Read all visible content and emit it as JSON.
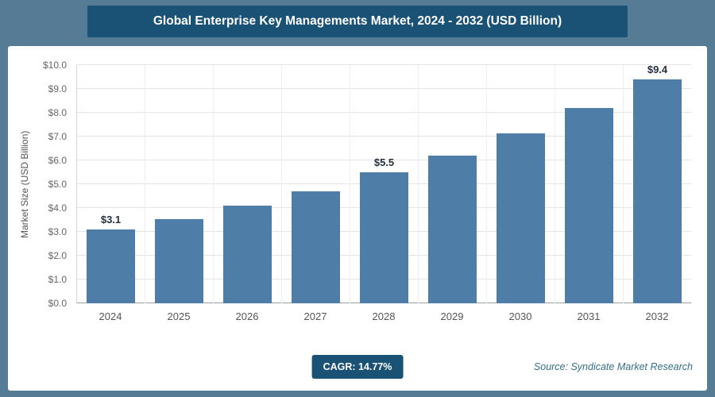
{
  "chart_data": {
    "type": "bar",
    "title": "Global Enterprise Key Managements Market, 2024 - 2032 (USD Billion)",
    "categories": [
      "2024",
      "2025",
      "2026",
      "2027",
      "2028",
      "2029",
      "2030",
      "2031",
      "2032"
    ],
    "values": [
      3.1,
      3.55,
      4.1,
      4.7,
      5.5,
      6.2,
      7.15,
      8.2,
      9.4
    ],
    "data_labels": [
      "$3.1",
      "",
      "",
      "",
      "$5.5",
      "",
      "",
      "",
      "$9.4"
    ],
    "xlabel": "",
    "ylabel": "Market Size (USD Billion)",
    "ylim": [
      0,
      10
    ],
    "ytick_labels": [
      "$0.0",
      "$1.0",
      "$2.0",
      "$3.0",
      "$4.0",
      "$5.0",
      "$6.0",
      "$7.0",
      "$8.0",
      "$9.0",
      "$10.0"
    ],
    "grid": true,
    "legend": "none",
    "bar_color": "#4e7ea7"
  },
  "footer": {
    "cagr_label": "CAGR: 14.77%",
    "source": "Source: Syndicate Market Research"
  },
  "colors": {
    "page_background": "#567c95",
    "title_bar_background": "#1a5276",
    "bar": "#4e7ea7",
    "badge_background": "#1a5276",
    "source_text": "#33708f"
  }
}
